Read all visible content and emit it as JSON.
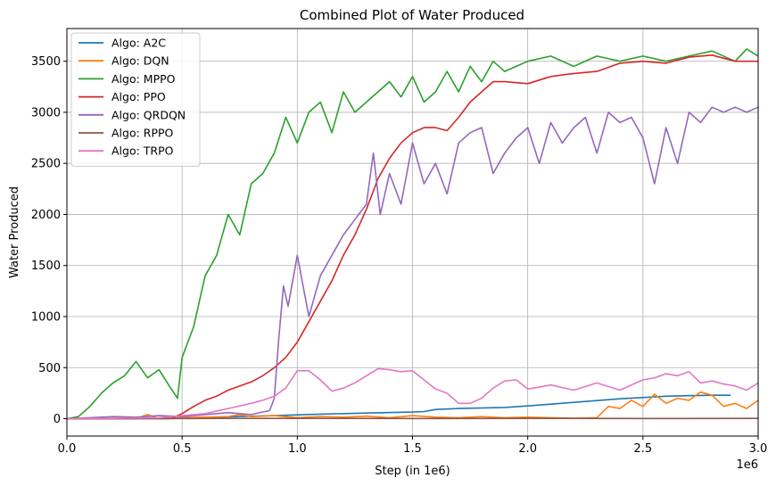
{
  "chart_data": {
    "type": "line",
    "title": "Combined Plot of Water Produced",
    "xlabel": "Step (in 1e6)",
    "ylabel": "Water Produced",
    "x_offset_label": "1e6",
    "xlim": [
      0,
      3.0
    ],
    "ylim": [
      -170,
      3820
    ],
    "xticks": [
      0.0,
      0.5,
      1.0,
      1.5,
      2.0,
      2.5,
      3.0
    ],
    "xtick_labels": [
      "0.0",
      "0.5",
      "1.0",
      "1.5",
      "2.0",
      "2.5",
      "3.0"
    ],
    "yticks": [
      0,
      500,
      1000,
      1500,
      2000,
      2500,
      3000,
      3500
    ],
    "ytick_labels": [
      "0",
      "500",
      "1000",
      "1500",
      "2000",
      "2500",
      "3000",
      "3500"
    ],
    "grid": true,
    "legend_position": "top-left",
    "series": [
      {
        "name": "Algo: A2C",
        "color": "#1f77b4",
        "x": [
          0.0,
          0.5,
          0.9,
          1.1,
          1.3,
          1.5,
          1.55,
          1.6,
          1.7,
          1.9,
          2.0,
          2.2,
          2.4,
          2.6,
          2.8,
          2.88
        ],
        "y": [
          0,
          5,
          30,
          45,
          55,
          65,
          70,
          90,
          100,
          110,
          125,
          160,
          195,
          220,
          230,
          230
        ]
      },
      {
        "name": "Algo: DQN",
        "color": "#ff7f0e",
        "x": [
          0.0,
          0.3,
          0.35,
          0.4,
          0.5,
          0.7,
          0.75,
          0.8,
          0.9,
          1.0,
          1.1,
          1.2,
          1.3,
          1.4,
          1.5,
          1.6,
          1.7,
          1.8,
          1.9,
          2.0,
          2.1,
          2.2,
          2.3,
          2.35,
          2.4,
          2.45,
          2.5,
          2.55,
          2.6,
          2.65,
          2.7,
          2.75,
          2.8,
          2.85,
          2.9,
          2.95,
          3.0
        ],
        "y": [
          0,
          0,
          40,
          0,
          10,
          20,
          40,
          20,
          30,
          10,
          20,
          15,
          25,
          10,
          30,
          15,
          10,
          20,
          10,
          15,
          10,
          5,
          10,
          120,
          100,
          180,
          120,
          240,
          150,
          200,
          180,
          260,
          230,
          120,
          150,
          100,
          180
        ]
      },
      {
        "name": "Algo: MPPO",
        "color": "#2ca02c",
        "x": [
          0.0,
          0.05,
          0.1,
          0.15,
          0.2,
          0.25,
          0.3,
          0.35,
          0.4,
          0.45,
          0.48,
          0.5,
          0.55,
          0.6,
          0.65,
          0.7,
          0.75,
          0.8,
          0.85,
          0.9,
          0.95,
          1.0,
          1.05,
          1.1,
          1.15,
          1.2,
          1.25,
          1.3,
          1.35,
          1.4,
          1.45,
          1.5,
          1.55,
          1.6,
          1.65,
          1.7,
          1.75,
          1.8,
          1.85,
          1.9,
          1.95,
          2.0,
          2.1,
          2.2,
          2.3,
          2.4,
          2.5,
          2.6,
          2.7,
          2.8,
          2.9,
          2.95,
          3.0
        ],
        "y": [
          0,
          20,
          120,
          250,
          350,
          420,
          560,
          400,
          480,
          300,
          200,
          600,
          900,
          1400,
          1600,
          2000,
          1800,
          2300,
          2400,
          2600,
          2950,
          2700,
          3000,
          3100,
          2800,
          3200,
          3000,
          3100,
          3200,
          3300,
          3150,
          3350,
          3100,
          3200,
          3400,
          3200,
          3450,
          3300,
          3500,
          3400,
          3450,
          3500,
          3550,
          3450,
          3550,
          3500,
          3550,
          3500,
          3550,
          3600,
          3500,
          3620,
          3550
        ]
      },
      {
        "name": "Algo: PPO",
        "color": "#d62728",
        "x": [
          0.0,
          0.45,
          0.5,
          0.55,
          0.6,
          0.65,
          0.7,
          0.75,
          0.8,
          0.85,
          0.9,
          0.95,
          1.0,
          1.05,
          1.1,
          1.15,
          1.2,
          1.25,
          1.3,
          1.35,
          1.4,
          1.45,
          1.5,
          1.55,
          1.6,
          1.65,
          1.7,
          1.75,
          1.8,
          1.85,
          1.9,
          2.0,
          2.1,
          2.2,
          2.3,
          2.4,
          2.5,
          2.6,
          2.7,
          2.8,
          2.9,
          3.0
        ],
        "y": [
          0,
          0,
          50,
          120,
          180,
          220,
          280,
          320,
          360,
          420,
          500,
          600,
          750,
          950,
          1150,
          1350,
          1600,
          1800,
          2050,
          2350,
          2550,
          2700,
          2800,
          2850,
          2850,
          2820,
          2950,
          3100,
          3200,
          3300,
          3300,
          3280,
          3350,
          3380,
          3400,
          3480,
          3500,
          3480,
          3540,
          3560,
          3500,
          3500
        ]
      },
      {
        "name": "Algo: QRDQN",
        "color": "#9467bd",
        "x": [
          0.0,
          0.1,
          0.2,
          0.3,
          0.4,
          0.5,
          0.6,
          0.7,
          0.8,
          0.88,
          0.9,
          0.92,
          0.94,
          0.96,
          1.0,
          1.05,
          1.1,
          1.15,
          1.2,
          1.25,
          1.3,
          1.33,
          1.36,
          1.4,
          1.45,
          1.5,
          1.55,
          1.6,
          1.65,
          1.7,
          1.75,
          1.8,
          1.85,
          1.9,
          1.95,
          2.0,
          2.05,
          2.1,
          2.15,
          2.2,
          2.25,
          2.3,
          2.35,
          2.4,
          2.45,
          2.5,
          2.55,
          2.6,
          2.65,
          2.7,
          2.75,
          2.8,
          2.85,
          2.9,
          2.95,
          3.0
        ],
        "y": [
          0,
          10,
          20,
          15,
          30,
          20,
          40,
          60,
          40,
          80,
          200,
          800,
          1300,
          1100,
          1600,
          1000,
          1400,
          1600,
          1800,
          1950,
          2100,
          2600,
          2000,
          2400,
          2100,
          2700,
          2300,
          2500,
          2200,
          2700,
          2800,
          2850,
          2400,
          2600,
          2750,
          2850,
          2500,
          2900,
          2700,
          2850,
          2950,
          2600,
          3000,
          2900,
          2950,
          2750,
          2300,
          2850,
          2500,
          3000,
          2900,
          3050,
          3000,
          3050,
          3000,
          3050
        ]
      },
      {
        "name": "Algo: RPPO",
        "color": "#8c564b",
        "x": [
          0.0,
          0.5,
          1.0,
          1.5,
          2.0,
          2.5,
          3.0
        ],
        "y": [
          0,
          2,
          3,
          2,
          3,
          2,
          3
        ]
      },
      {
        "name": "Algo: TRPO",
        "color": "#e377c2",
        "x": [
          0.0,
          0.2,
          0.4,
          0.6,
          0.7,
          0.8,
          0.85,
          0.9,
          0.95,
          1.0,
          1.05,
          1.1,
          1.15,
          1.2,
          1.25,
          1.3,
          1.35,
          1.4,
          1.45,
          1.5,
          1.55,
          1.6,
          1.65,
          1.7,
          1.75,
          1.8,
          1.85,
          1.9,
          1.95,
          2.0,
          2.1,
          2.2,
          2.3,
          2.4,
          2.5,
          2.55,
          2.6,
          2.65,
          2.7,
          2.75,
          2.8,
          2.85,
          2.9,
          2.95,
          3.0
        ],
        "y": [
          0,
          5,
          10,
          50,
          100,
          150,
          180,
          220,
          300,
          470,
          470,
          380,
          270,
          300,
          350,
          420,
          490,
          480,
          460,
          470,
          380,
          290,
          250,
          150,
          150,
          200,
          300,
          370,
          380,
          290,
          330,
          280,
          350,
          280,
          380,
          400,
          440,
          420,
          460,
          350,
          370,
          340,
          320,
          280,
          350
        ]
      }
    ]
  }
}
